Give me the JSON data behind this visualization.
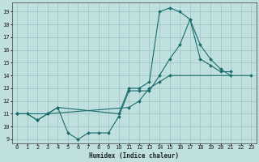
{
  "title": "",
  "xlabel": "Humidex (Indice chaleur)",
  "bg_color": "#c0e0e0",
  "line_color": "#1a6b6b",
  "grid_color": "#a0c8c8",
  "xlim": [
    -0.5,
    23.5
  ],
  "ylim": [
    8.7,
    19.7
  ],
  "xticks": [
    0,
    1,
    2,
    3,
    4,
    5,
    6,
    7,
    8,
    9,
    10,
    11,
    12,
    13,
    14,
    15,
    16,
    17,
    18,
    19,
    20,
    21,
    22,
    23
  ],
  "yticks": [
    9,
    10,
    11,
    12,
    13,
    14,
    15,
    16,
    17,
    18,
    19
  ],
  "line1_x": [
    0,
    1,
    2,
    3,
    4,
    5,
    6,
    7,
    8,
    9,
    10,
    11,
    12,
    13,
    14,
    15,
    16,
    17,
    18,
    19,
    20,
    21
  ],
  "line1_y": [
    11,
    11,
    10.5,
    11,
    11.5,
    9.5,
    9.0,
    9.5,
    9.5,
    9.5,
    10.8,
    12.8,
    12.8,
    12.8,
    14.0,
    15.3,
    16.4,
    18.4,
    15.3,
    14.8,
    14.3,
    14.3
  ],
  "line2_x": [
    0,
    1,
    2,
    3,
    4,
    10,
    11,
    12,
    13,
    14,
    15,
    16,
    17,
    18,
    19,
    20,
    21
  ],
  "line2_y": [
    11,
    11,
    10.5,
    11,
    11.5,
    11,
    13,
    13.0,
    13.5,
    19.0,
    19.3,
    19.0,
    18.4,
    16.4,
    15.3,
    14.5,
    14.0
  ],
  "line3_x": [
    0,
    3,
    11,
    12,
    13,
    14,
    15,
    23
  ],
  "line3_y": [
    11,
    11,
    11.5,
    12.0,
    13,
    13.5,
    14.0,
    14.0
  ]
}
